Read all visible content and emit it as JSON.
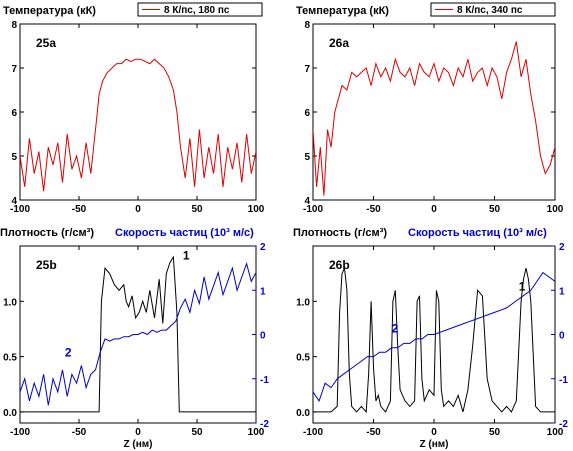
{
  "chart_data": [
    {
      "type": "line",
      "panel_label": "25a",
      "title": "Температура (кК)",
      "legend": {
        "label": "8 К/пс, 180 пс",
        "color": "#dd0000",
        "placement": "top"
      },
      "xlim": [
        -100,
        100
      ],
      "ylim": [
        4,
        8
      ],
      "xticks": [
        "-100",
        "-50",
        "0",
        "50",
        "100"
      ],
      "yticks": [
        "4",
        "5",
        "6",
        "7",
        "8"
      ],
      "series": [
        {
          "name": "8 К/пс, 180 пс",
          "color": "#dd0000",
          "x": [
            -100,
            -96,
            -92,
            -88,
            -84,
            -80,
            -76,
            -72,
            -68,
            -64,
            -60,
            -56,
            -52,
            -48,
            -44,
            -40,
            -36,
            -33,
            -30,
            -26,
            -22,
            -18,
            -14,
            -10,
            -6,
            -2,
            2,
            6,
            10,
            14,
            18,
            22,
            26,
            30,
            33,
            36,
            40,
            44,
            48,
            52,
            56,
            60,
            64,
            68,
            72,
            76,
            80,
            84,
            88,
            92,
            96,
            100
          ],
          "y": [
            5.0,
            4.3,
            5.4,
            4.6,
            5.1,
            4.2,
            5.2,
            4.8,
            5.3,
            4.4,
            5.5,
            4.7,
            5.0,
            4.5,
            5.3,
            4.6,
            5.6,
            6.4,
            6.7,
            6.9,
            7.0,
            7.1,
            7.1,
            7.2,
            7.15,
            7.2,
            7.2,
            7.15,
            7.1,
            7.2,
            7.1,
            7.0,
            6.8,
            6.5,
            6.0,
            5.2,
            4.5,
            5.4,
            4.3,
            5.6,
            4.5,
            5.2,
            4.6,
            5.5,
            4.3,
            5.2,
            4.7,
            5.3,
            4.4,
            5.5,
            4.6,
            5.1
          ]
        }
      ]
    },
    {
      "type": "line",
      "panel_label": "26a",
      "title": "Температура (кК)",
      "legend": {
        "label": "8 К/пс, 340 пс",
        "color": "#dd0000",
        "placement": "top"
      },
      "xlim": [
        -100,
        100
      ],
      "ylim": [
        4,
        8
      ],
      "xticks": [
        "-100",
        "-50",
        "0",
        "50",
        "100"
      ],
      "yticks": [
        "4",
        "5",
        "6",
        "7",
        "8"
      ],
      "series": [
        {
          "name": "8 К/пс, 340 пс",
          "color": "#dd0000",
          "x": [
            -100,
            -97,
            -94,
            -91,
            -88,
            -85,
            -82,
            -79,
            -76,
            -72,
            -68,
            -64,
            -60,
            -56,
            -52,
            -48,
            -44,
            -40,
            -36,
            -32,
            -28,
            -24,
            -20,
            -16,
            -12,
            -8,
            -4,
            0,
            4,
            8,
            12,
            16,
            20,
            24,
            28,
            32,
            36,
            40,
            44,
            48,
            52,
            56,
            60,
            64,
            68,
            72,
            76,
            80,
            84,
            88,
            92,
            96,
            100
          ],
          "y": [
            5.6,
            4.3,
            5.2,
            4.1,
            5.6,
            5.2,
            6.0,
            6.3,
            6.6,
            6.5,
            6.9,
            6.8,
            6.9,
            7.0,
            6.6,
            7.1,
            6.8,
            7.0,
            6.7,
            7.2,
            6.9,
            6.8,
            7.0,
            6.6,
            7.1,
            6.9,
            6.8,
            7.1,
            6.7,
            7.0,
            6.9,
            6.6,
            7.0,
            6.8,
            7.2,
            6.7,
            6.9,
            7.0,
            6.6,
            7.0,
            6.8,
            6.3,
            6.9,
            7.2,
            7.6,
            6.8,
            7.2,
            6.4,
            5.8,
            5.0,
            4.6,
            4.8,
            5.2
          ]
        }
      ]
    },
    {
      "type": "line",
      "panel_label": "25b",
      "title_left": "Плотность (г/см³)",
      "title_right": "Скорость частиц (10³ м/с)",
      "xlabel": "Z (нм)",
      "xlim": [
        -100,
        100
      ],
      "ylim": [
        -0.1,
        1.5
      ],
      "y2lim": [
        -2,
        2
      ],
      "xticks": [
        "-100",
        "-50",
        "0",
        "50",
        "100"
      ],
      "yticks": [
        "0.0",
        "0.5",
        "1.0"
      ],
      "y2ticks": [
        "-2",
        "-1",
        "0",
        "1",
        "2"
      ],
      "curve_labels": [
        "1",
        "2"
      ],
      "series": [
        {
          "name": "1",
          "axis": "left",
          "color": "#000000",
          "x": [
            -100,
            -80,
            -60,
            -40,
            -33,
            -31,
            -28,
            -24,
            -20,
            -16,
            -12,
            -10,
            -8,
            -5,
            -2,
            1,
            4,
            7,
            10,
            14,
            18,
            21,
            24,
            27,
            30,
            33,
            35,
            40,
            60,
            80,
            100
          ],
          "y": [
            0.0,
            0.0,
            0.0,
            0.0,
            0.0,
            1.0,
            1.3,
            1.25,
            1.15,
            1.1,
            1.15,
            1.0,
            0.95,
            1.05,
            0.85,
            0.9,
            1.0,
            0.9,
            1.1,
            0.85,
            1.2,
            0.8,
            1.25,
            1.35,
            1.4,
            0.9,
            0.0,
            0.0,
            0.0,
            0.0,
            0.0
          ]
        },
        {
          "name": "2",
          "axis": "right",
          "color": "#0000cc",
          "x": [
            -100,
            -96,
            -92,
            -88,
            -84,
            -80,
            -76,
            -72,
            -68,
            -64,
            -60,
            -56,
            -52,
            -48,
            -44,
            -40,
            -36,
            -32,
            -28,
            -24,
            -20,
            -16,
            -12,
            -8,
            -4,
            0,
            4,
            8,
            12,
            16,
            20,
            24,
            28,
            32,
            36,
            40,
            44,
            48,
            52,
            56,
            60,
            64,
            68,
            72,
            76,
            80,
            84,
            88,
            92,
            96,
            100
          ],
          "y": [
            -1.3,
            -1.0,
            -1.5,
            -1.1,
            -1.4,
            -0.9,
            -1.6,
            -1.0,
            -1.3,
            -0.8,
            -1.4,
            -0.9,
            -1.1,
            -0.7,
            -1.2,
            -0.9,
            -0.8,
            -0.4,
            -0.1,
            -0.15,
            -0.1,
            -0.1,
            -0.05,
            -0.05,
            0.0,
            0.0,
            0.05,
            0.0,
            0.1,
            0.05,
            0.1,
            0.1,
            0.2,
            0.3,
            0.6,
            0.8,
            0.5,
            1.0,
            0.7,
            1.3,
            0.8,
            1.1,
            1.4,
            0.9,
            1.2,
            1.5,
            1.0,
            1.3,
            1.6,
            1.2,
            1.4
          ]
        }
      ]
    },
    {
      "type": "line",
      "panel_label": "26b",
      "title_left": "Плотность (г/см³)",
      "title_right": "Скорость частиц (10³ м/с)",
      "xlabel": "Z (нм)",
      "xlim": [
        -100,
        100
      ],
      "ylim": [
        -0.1,
        1.5
      ],
      "y2lim": [
        -2,
        2
      ],
      "xticks": [
        "-100",
        "-50",
        "0",
        "50",
        "100"
      ],
      "yticks": [
        "0.0",
        "0.5",
        "1.0"
      ],
      "y2ticks": [
        "-2",
        "-1",
        "0",
        "1",
        "2"
      ],
      "curve_labels": [
        "1",
        "2"
      ],
      "series": [
        {
          "name": "1",
          "axis": "left",
          "color": "#000000",
          "x": [
            -100,
            -85,
            -80,
            -78,
            -76,
            -74,
            -72,
            -70,
            -68,
            -64,
            -60,
            -56,
            -54,
            -52,
            -50,
            -48,
            -46,
            -44,
            -40,
            -36,
            -34,
            -32,
            -30,
            -28,
            -24,
            -20,
            -16,
            -14,
            -12,
            -10,
            -8,
            -4,
            0,
            2,
            4,
            6,
            8,
            12,
            16,
            20,
            24,
            28,
            32,
            36,
            40,
            44,
            48,
            52,
            56,
            60,
            64,
            68,
            72,
            74,
            76,
            78,
            80,
            84,
            88,
            92,
            100
          ],
          "y": [
            0.0,
            0.0,
            0.05,
            0.9,
            1.25,
            1.3,
            1.1,
            0.35,
            0.05,
            0.0,
            0.05,
            0.0,
            0.35,
            1.0,
            0.4,
            0.1,
            0.15,
            0.05,
            0.0,
            0.1,
            1.0,
            1.1,
            0.6,
            0.2,
            0.1,
            0.05,
            0.1,
            1.0,
            1.05,
            0.3,
            0.1,
            0.2,
            0.15,
            1.1,
            1.0,
            0.2,
            0.05,
            0.1,
            0.05,
            0.15,
            0.0,
            0.2,
            0.6,
            1.1,
            1.05,
            0.3,
            0.1,
            0.05,
            0.0,
            0.05,
            0.0,
            0.1,
            1.0,
            1.2,
            1.3,
            1.2,
            1.0,
            0.05,
            0.0,
            0.0,
            0.0
          ]
        },
        {
          "name": "2",
          "axis": "right",
          "color": "#0000cc",
          "x": [
            -100,
            -95,
            -90,
            -85,
            -80,
            -75,
            -70,
            -65,
            -60,
            -55,
            -50,
            -45,
            -40,
            -35,
            -30,
            -25,
            -20,
            -15,
            -10,
            -5,
            0,
            5,
            10,
            15,
            20,
            25,
            30,
            35,
            40,
            45,
            50,
            55,
            60,
            65,
            70,
            75,
            80,
            85,
            90,
            95,
            100
          ],
          "y": [
            -1.3,
            -1.5,
            -1.1,
            -1.2,
            -1.0,
            -0.9,
            -0.8,
            -0.7,
            -0.6,
            -0.5,
            -0.5,
            -0.4,
            -0.4,
            -0.3,
            -0.3,
            -0.2,
            -0.2,
            -0.1,
            -0.1,
            0.0,
            0.0,
            0.05,
            0.1,
            0.15,
            0.2,
            0.25,
            0.3,
            0.35,
            0.4,
            0.45,
            0.5,
            0.55,
            0.6,
            0.7,
            0.8,
            0.9,
            1.0,
            1.2,
            1.4,
            1.3,
            1.2
          ]
        }
      ]
    }
  ]
}
